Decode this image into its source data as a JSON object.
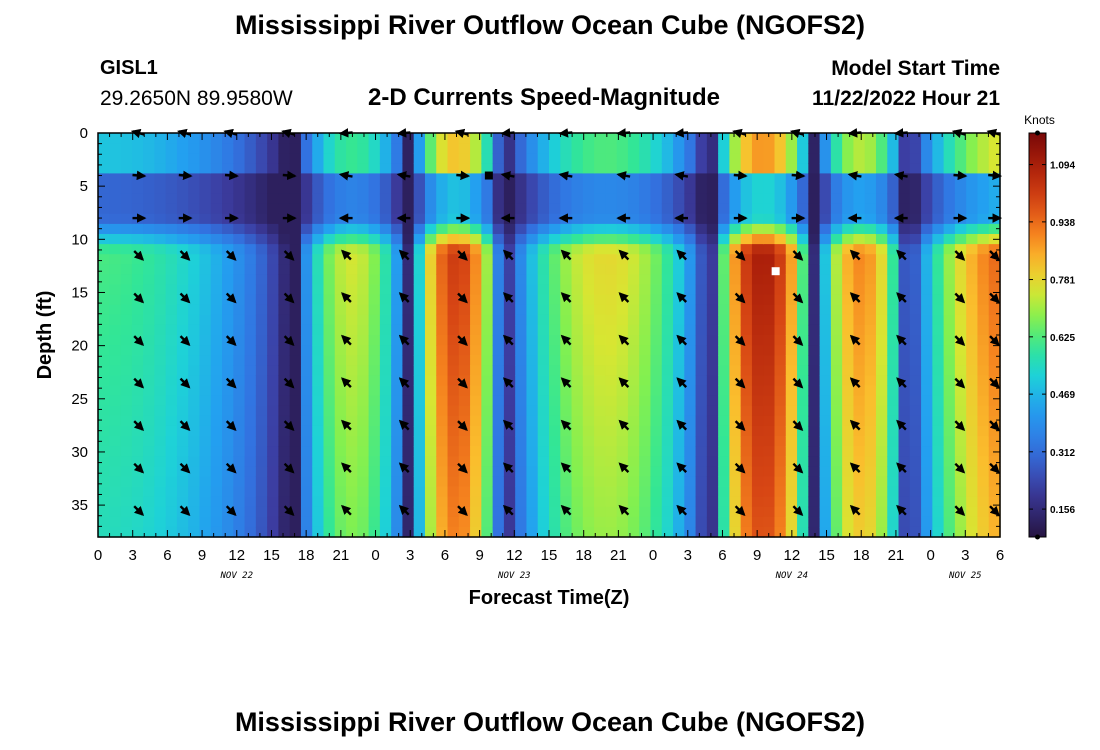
{
  "page": {
    "title": "Mississippi River Outflow Ocean Cube (NGOFS2)",
    "title_repeat": "Mississippi River Outflow Ocean Cube (NGOFS2)",
    "station": "GISL1",
    "latlon": "29.2650N  89.9580W",
    "subtitle": "2-D Currents Speed-Magnitude",
    "model_start_label": "Model Start Time",
    "model_start_value": "11/22/2022 Hour 21"
  },
  "chart_data": {
    "type": "heatmap",
    "title": "2-D Currents Speed-Magnitude",
    "xlabel": "Forecast Time(Z)",
    "ylabel": "Depth (ft)",
    "x_unit": "forecast hours from 00Z Nov 22",
    "x_range": [
      0,
      78
    ],
    "y_range": [
      0,
      38
    ],
    "x_ticks": [
      {
        "t": 0,
        "label": "0"
      },
      {
        "t": 3,
        "label": "3"
      },
      {
        "t": 6,
        "label": "6"
      },
      {
        "t": 9,
        "label": "9"
      },
      {
        "t": 12,
        "label": "12"
      },
      {
        "t": 15,
        "label": "15"
      },
      {
        "t": 18,
        "label": "18"
      },
      {
        "t": 21,
        "label": "21"
      },
      {
        "t": 24,
        "label": "0"
      },
      {
        "t": 27,
        "label": "3"
      },
      {
        "t": 30,
        "label": "6"
      },
      {
        "t": 33,
        "label": "9"
      },
      {
        "t": 36,
        "label": "12"
      },
      {
        "t": 39,
        "label": "15"
      },
      {
        "t": 42,
        "label": "18"
      },
      {
        "t": 45,
        "label": "21"
      },
      {
        "t": 48,
        "label": "0"
      },
      {
        "t": 51,
        "label": "3"
      },
      {
        "t": 54,
        "label": "6"
      },
      {
        "t": 57,
        "label": "9"
      },
      {
        "t": 60,
        "label": "12"
      },
      {
        "t": 63,
        "label": "15"
      },
      {
        "t": 66,
        "label": "18"
      },
      {
        "t": 69,
        "label": "21"
      },
      {
        "t": 72,
        "label": "0"
      },
      {
        "t": 75,
        "label": "3"
      },
      {
        "t": 78,
        "label": "6"
      }
    ],
    "date_labels": [
      {
        "t": 12,
        "label": "NOV 22"
      },
      {
        "t": 36,
        "label": "NOV 23"
      },
      {
        "t": 60,
        "label": "NOV 24"
      },
      {
        "t": 75,
        "label": "NOV 25"
      }
    ],
    "y_ticks": [
      {
        "v": 0,
        "label": "0"
      },
      {
        "v": 5,
        "label": "5"
      },
      {
        "v": 10,
        "label": "10"
      },
      {
        "v": 15,
        "label": "15"
      },
      {
        "v": 20,
        "label": "20"
      },
      {
        "v": 25,
        "label": "25"
      },
      {
        "v": 30,
        "label": "30"
      },
      {
        "v": 35,
        "label": "35"
      }
    ],
    "colorbar": {
      "unit": "Knots",
      "range": [
        0.08,
        1.18
      ],
      "labels": [
        {
          "v": 0.156,
          "label": "0.156"
        },
        {
          "v": 0.312,
          "label": "0.312"
        },
        {
          "v": 0.469,
          "label": "0.469"
        },
        {
          "v": 0.625,
          "label": "0.625"
        },
        {
          "v": 0.781,
          "label": "0.781"
        },
        {
          "v": 0.938,
          "label": "0.938"
        },
        {
          "v": 1.094,
          "label": "1.094"
        }
      ]
    },
    "tidal_series": {
      "phase_times_hr": [
        17,
        27,
        35,
        53,
        62,
        70
      ],
      "phase_signs": [
        -1,
        1,
        -1,
        1,
        -1,
        1
      ],
      "phase_amplitudes": [
        0.75,
        1.02,
        0.78,
        1.1,
        0.9,
        0.98
      ],
      "slack_min_speed": 0.12,
      "mid_layer_depth_range_ft": [
        4,
        8
      ]
    },
    "arrow_times_hr": [
      3.5,
      7.5,
      11.5,
      16.5,
      21.5,
      26.5,
      31.5,
      35.5,
      40.5,
      45.5,
      50.5,
      55.5,
      60.5,
      65.5,
      69.5,
      74.5,
      77.5
    ],
    "arrow_depths_ft": [
      0,
      4,
      8,
      11.5,
      15.5,
      19.5,
      23.5,
      27.5,
      31.5,
      35.5
    ],
    "markers": [
      {
        "t": 33.8,
        "depth": 4,
        "color": "#000000"
      },
      {
        "t": 58.6,
        "depth": 13,
        "color": "#ffffff"
      }
    ]
  }
}
